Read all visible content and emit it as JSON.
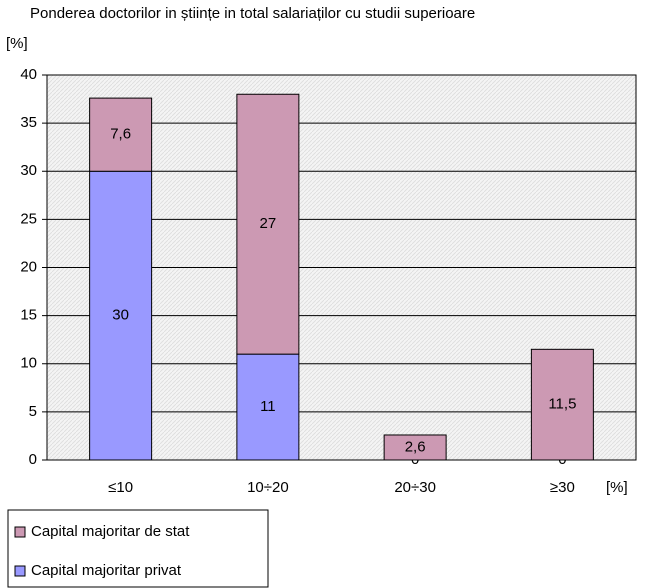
{
  "chart_data": {
    "type": "stacked_bar",
    "title": "Ponderea doctorilor in științe in total salariaților cu studii superioare",
    "y_label": "[%]",
    "x_label": "[%]",
    "categories": [
      "≤10",
      "10÷20",
      "20÷30",
      "≥30"
    ],
    "series": [
      {
        "name": "Capital majoritar privat",
        "color": "#9999ff",
        "values": [
          30,
          11,
          0,
          0
        ]
      },
      {
        "name": "Capital majoritar de stat",
        "color": "#cc99b3",
        "values": [
          7.6,
          27,
          2.6,
          11.5
        ],
        "value_labels": [
          "7,6",
          "27",
          "2,6",
          "11,5"
        ]
      }
    ],
    "ylim": [
      0,
      40
    ],
    "yticks": [
      0,
      5,
      10,
      15,
      20,
      25,
      30,
      35,
      40
    ],
    "grid": true
  }
}
